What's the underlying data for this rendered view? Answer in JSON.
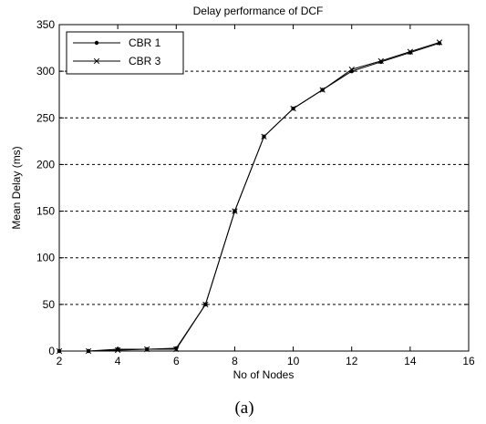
{
  "chart_data": {
    "type": "line",
    "title": "Delay performance of DCF",
    "xlabel": "No of Nodes",
    "ylabel": "Mean Delay (ms)",
    "xlim": [
      2,
      16
    ],
    "ylim": [
      0,
      350
    ],
    "xticks": [
      2,
      4,
      6,
      8,
      10,
      12,
      14,
      16
    ],
    "yticks": [
      0,
      50,
      100,
      150,
      200,
      250,
      300,
      350
    ],
    "grid": "horizontal dashed",
    "legend_position": "top-left",
    "x": [
      2,
      3,
      4,
      5,
      6,
      7,
      8,
      9,
      10,
      11,
      12,
      13,
      14,
      15
    ],
    "series": [
      {
        "name": "CBR 1",
        "marker": "dot",
        "values": [
          0,
          0,
          2,
          2,
          3,
          50,
          150,
          230,
          260,
          280,
          300,
          310,
          320,
          330
        ]
      },
      {
        "name": "CBR 3",
        "marker": "x",
        "values": [
          0,
          0,
          1,
          2,
          2,
          50,
          150,
          230,
          260,
          280,
          302,
          311,
          321,
          331
        ]
      }
    ],
    "colors": {
      "line": "#000000",
      "grid": "#000000"
    }
  },
  "caption": "(a)"
}
